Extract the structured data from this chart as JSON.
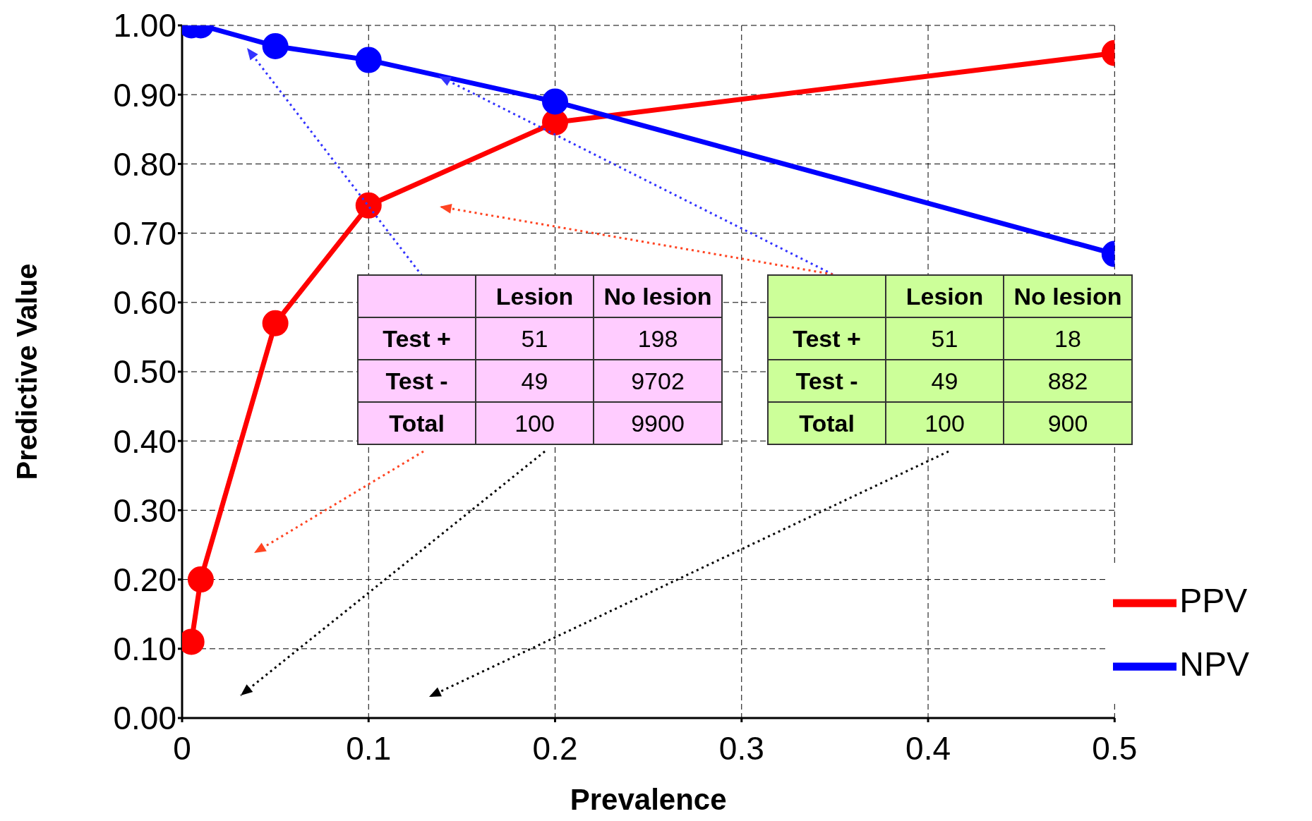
{
  "chart_data": {
    "type": "line",
    "xlabel": "Prevalence",
    "ylabel": "Predictive Value",
    "x": [
      0.005,
      0.01,
      0.05,
      0.1,
      0.2,
      0.5
    ],
    "series": [
      {
        "name": "PPV",
        "color": "#ff0000",
        "values": [
          0.11,
          0.2,
          0.57,
          0.74,
          0.86,
          0.96
        ]
      },
      {
        "name": "NPV",
        "color": "#0000ff",
        "values": [
          1.0,
          1.0,
          0.97,
          0.95,
          0.89,
          0.67
        ]
      }
    ],
    "xlim": [
      0,
      0.5
    ],
    "xticks": [
      0,
      0.1,
      0.2,
      0.3,
      0.4,
      0.5
    ],
    "ylim": [
      0,
      1
    ],
    "yticks": [
      {
        "value": 0,
        "label": "0.00"
      },
      {
        "value": 0.1,
        "label": "0.10"
      },
      {
        "value": 0.2,
        "label": "0.20"
      },
      {
        "value": 0.3,
        "label": "0.30"
      },
      {
        "value": 0.4,
        "label": "0.40"
      },
      {
        "value": 0.5,
        "label": "0.50"
      },
      {
        "value": 0.6,
        "label": "0.60"
      },
      {
        "value": 0.7,
        "label": "0.70"
      },
      {
        "value": 0.8,
        "label": "0.80"
      },
      {
        "value": 0.9,
        "label": "0.90"
      },
      {
        "value": 1,
        "label": "1.00"
      }
    ],
    "grid": true,
    "legend": "bottom right",
    "marker": "circle",
    "line_style": "solid",
    "annotations": [
      "Lesion",
      "No lesion",
      "Test +",
      "51",
      "198",
      "Test -",
      "49",
      "9702",
      "Total",
      "100",
      "9900",
      "Lesion",
      "No lesion",
      "Test +",
      "51",
      "18",
      "Test -",
      "49",
      "882",
      "Total",
      "100",
      "900"
    ]
  }
}
